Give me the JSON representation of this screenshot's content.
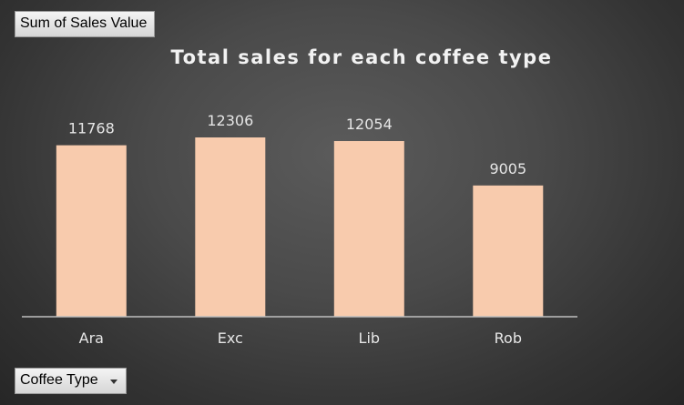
{
  "pivot": {
    "values_field_label": "Sum of Sales Value",
    "axis_field_label": "Coffee Type"
  },
  "colors": {
    "bar": "#f8cbad",
    "axis_line": "#bfbfbf",
    "text": "#e6e6e6"
  },
  "chart_data": {
    "type": "bar",
    "title": "Total sales for each coffee type",
    "categories": [
      "Ara",
      "Exc",
      "Lib",
      "Rob"
    ],
    "values": [
      11768,
      12306,
      12054,
      9005
    ],
    "data_labels": [
      "11768",
      "12306",
      "12054",
      "9005"
    ],
    "xlabel": "",
    "ylabel": "",
    "ylim": [
      0,
      14000
    ],
    "grid": false,
    "legend": "none"
  }
}
